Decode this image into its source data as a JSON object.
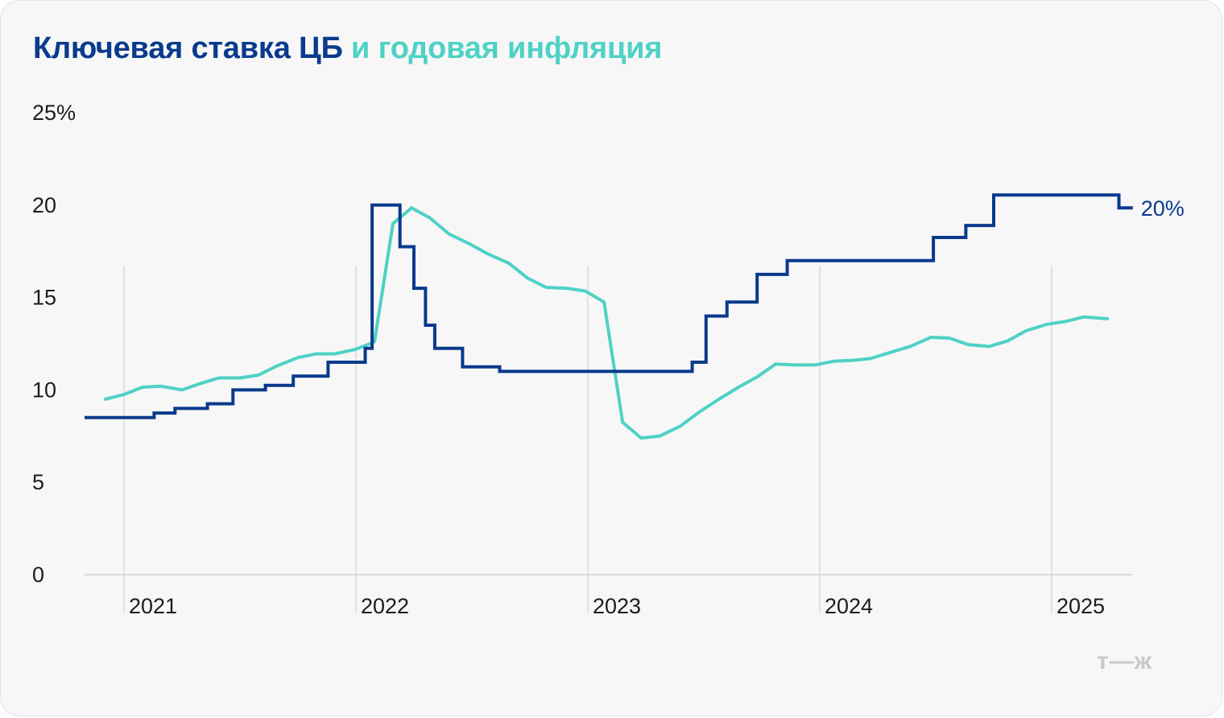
{
  "title": {
    "part1": "Ключевая ставка ЦБ",
    "part2": "и годовая инфляция"
  },
  "colors": {
    "key_rate": "#0a3a8c",
    "inflation": "#4fd1c5",
    "grid": "#d9d9dc"
  },
  "logo": "т—ж",
  "chart_data": {
    "type": "line",
    "title": "Ключевая ставка ЦБ и годовая инфляция",
    "xlabel": "",
    "ylabel": "",
    "ylim": [
      0,
      25
    ],
    "xlim": [
      2020.83,
      2025.35
    ],
    "yticks": [
      {
        "value": 25,
        "label": "25%"
      },
      {
        "value": 20,
        "label": "20"
      },
      {
        "value": 15,
        "label": "15"
      },
      {
        "value": 10,
        "label": "10"
      },
      {
        "value": 5,
        "label": "5"
      },
      {
        "value": 0,
        "label": "0"
      }
    ],
    "xticks": [
      {
        "value": 2021,
        "label": "2021"
      },
      {
        "value": 2022,
        "label": "2022"
      },
      {
        "value": 2023,
        "label": "2023"
      },
      {
        "value": 2024,
        "label": "2024"
      },
      {
        "value": 2025,
        "label": "2025"
      }
    ],
    "series": [
      {
        "name": "Ключевая ставка ЦБ",
        "style": "step",
        "end_label": "20%",
        "points": [
          [
            2020.83,
            8.5
          ],
          [
            2021.13,
            8.5
          ],
          [
            2021.13,
            8.75
          ],
          [
            2021.22,
            8.75
          ],
          [
            2021.22,
            9.0
          ],
          [
            2021.36,
            9.0
          ],
          [
            2021.36,
            9.25
          ],
          [
            2021.47,
            9.25
          ],
          [
            2021.47,
            10.0
          ],
          [
            2021.61,
            10.0
          ],
          [
            2021.61,
            10.25
          ],
          [
            2021.73,
            10.25
          ],
          [
            2021.73,
            10.75
          ],
          [
            2021.88,
            10.75
          ],
          [
            2021.88,
            11.5
          ],
          [
            2022.04,
            11.5
          ],
          [
            2022.04,
            12.25
          ],
          [
            2022.07,
            12.25
          ],
          [
            2022.07,
            20.0
          ],
          [
            2022.19,
            20.0
          ],
          [
            2022.19,
            17.75
          ],
          [
            2022.25,
            17.75
          ],
          [
            2022.25,
            15.5
          ],
          [
            2022.3,
            15.5
          ],
          [
            2022.3,
            13.5
          ],
          [
            2022.34,
            13.5
          ],
          [
            2022.34,
            12.25
          ],
          [
            2022.46,
            12.25
          ],
          [
            2022.46,
            11.25
          ],
          [
            2022.62,
            11.25
          ],
          [
            2022.62,
            11.0
          ],
          [
            2023.45,
            11.0
          ],
          [
            2023.45,
            11.5
          ],
          [
            2023.51,
            11.5
          ],
          [
            2023.51,
            14.0
          ],
          [
            2023.6,
            14.0
          ],
          [
            2023.6,
            14.75
          ],
          [
            2023.73,
            14.75
          ],
          [
            2023.73,
            16.25
          ],
          [
            2023.86,
            16.25
          ],
          [
            2023.86,
            17.0
          ],
          [
            2024.49,
            17.0
          ],
          [
            2024.49,
            18.25
          ],
          [
            2024.63,
            18.25
          ],
          [
            2024.63,
            18.9
          ],
          [
            2024.75,
            18.9
          ],
          [
            2024.75,
            20.55
          ],
          [
            2025.29,
            20.55
          ],
          [
            2025.29,
            19.85
          ],
          [
            2025.35,
            19.85
          ]
        ]
      },
      {
        "name": "Годовая инфляция",
        "style": "line",
        "points": [
          [
            2020.92,
            9.5
          ],
          [
            2021.0,
            9.75
          ],
          [
            2021.08,
            10.15
          ],
          [
            2021.16,
            10.2
          ],
          [
            2021.25,
            10.0
          ],
          [
            2021.33,
            10.35
          ],
          [
            2021.41,
            10.65
          ],
          [
            2021.5,
            10.65
          ],
          [
            2021.58,
            10.8
          ],
          [
            2021.66,
            11.3
          ],
          [
            2021.75,
            11.75
          ],
          [
            2021.83,
            11.95
          ],
          [
            2021.91,
            11.95
          ],
          [
            2022.0,
            12.2
          ],
          [
            2022.08,
            12.6
          ],
          [
            2022.16,
            19.0
          ],
          [
            2022.24,
            19.85
          ],
          [
            2022.32,
            19.3
          ],
          [
            2022.4,
            18.45
          ],
          [
            2022.49,
            17.9
          ],
          [
            2022.57,
            17.35
          ],
          [
            2022.66,
            16.85
          ],
          [
            2022.74,
            16.05
          ],
          [
            2022.82,
            15.55
          ],
          [
            2022.91,
            15.5
          ],
          [
            2022.99,
            15.35
          ],
          [
            2023.07,
            14.75
          ],
          [
            2023.15,
            8.25
          ],
          [
            2023.23,
            7.4
          ],
          [
            2023.31,
            7.5
          ],
          [
            2023.4,
            8.05
          ],
          [
            2023.48,
            8.8
          ],
          [
            2023.56,
            9.45
          ],
          [
            2023.65,
            10.15
          ],
          [
            2023.73,
            10.7
          ],
          [
            2023.81,
            11.4
          ],
          [
            2023.89,
            11.35
          ],
          [
            2023.98,
            11.35
          ],
          [
            2024.06,
            11.55
          ],
          [
            2024.14,
            11.6
          ],
          [
            2024.22,
            11.7
          ],
          [
            2024.31,
            12.05
          ],
          [
            2024.39,
            12.35
          ],
          [
            2024.48,
            12.85
          ],
          [
            2024.56,
            12.8
          ],
          [
            2024.64,
            12.45
          ],
          [
            2024.73,
            12.35
          ],
          [
            2024.81,
            12.65
          ],
          [
            2024.89,
            13.2
          ],
          [
            2024.98,
            13.55
          ],
          [
            2025.06,
            13.7
          ],
          [
            2025.14,
            13.95
          ],
          [
            2025.24,
            13.85
          ]
        ]
      }
    ]
  }
}
